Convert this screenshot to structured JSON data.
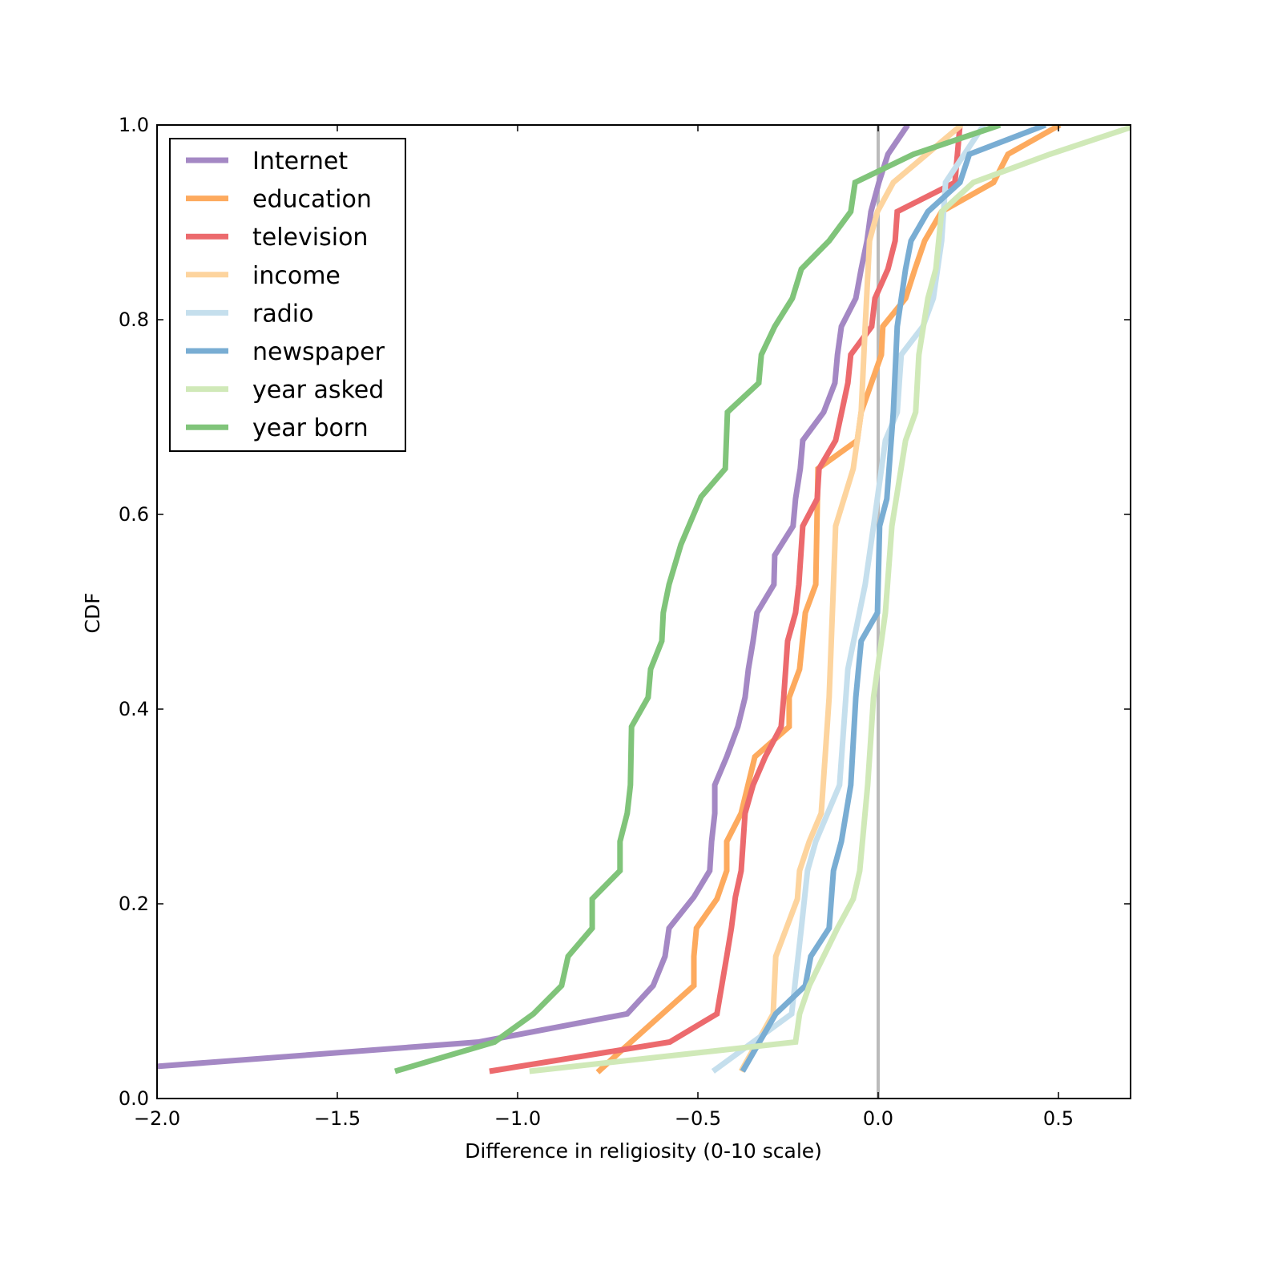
{
  "chart_data": {
    "type": "line",
    "title": "",
    "xlabel": "Difference in religiosity (0-10 scale)",
    "ylabel": "CDF",
    "xlim": [
      -2.0,
      0.7
    ],
    "ylim": [
      0.0,
      1.0
    ],
    "xticks": [
      -2.0,
      -1.5,
      -1.0,
      -0.5,
      0.0,
      0.5
    ],
    "xtick_labels": [
      "−2.0",
      "−1.5",
      "−1.0",
      "−0.5",
      "0.0",
      "0.5"
    ],
    "yticks": [
      0.0,
      0.2,
      0.4,
      0.6,
      0.8,
      1.0
    ],
    "ytick_labels": [
      "0.0",
      "0.2",
      "0.4",
      "0.6",
      "0.8",
      "1.0"
    ],
    "grid": false,
    "legend_position": "top-left",
    "reference_line": {
      "x": 0.0,
      "color": "#bbbbbb"
    },
    "series": [
      {
        "name": "Internet",
        "color": "#a488c4",
        "x": [
          -2.0,
          -1.107,
          -0.696,
          -0.624,
          -0.591,
          -0.58,
          -0.511,
          -0.467,
          -0.462,
          -0.453,
          -0.453,
          -0.42,
          -0.389,
          -0.369,
          -0.36,
          -0.347,
          -0.336,
          -0.289,
          -0.287,
          -0.236,
          -0.229,
          -0.216,
          -0.209,
          -0.151,
          -0.12,
          -0.113,
          -0.102,
          -0.062,
          -0.047,
          -0.031,
          -0.02,
          0.002,
          0.027,
          0.082
        ],
        "y": [
          0.033,
          0.058,
          0.087,
          0.116,
          0.146,
          0.175,
          0.207,
          0.234,
          0.264,
          0.293,
          0.322,
          0.351,
          0.382,
          0.412,
          0.441,
          0.47,
          0.499,
          0.528,
          0.558,
          0.588,
          0.616,
          0.647,
          0.676,
          0.705,
          0.735,
          0.764,
          0.793,
          0.822,
          0.852,
          0.881,
          0.911,
          0.941,
          0.97,
          1.0
        ]
      },
      {
        "name": "education",
        "color": "#fdaa5e",
        "x": [
          -0.778,
          -0.698,
          -0.511,
          -0.511,
          -0.504,
          -0.447,
          -0.42,
          -0.42,
          -0.38,
          -0.342,
          -0.247,
          -0.247,
          -0.218,
          -0.202,
          -0.173,
          -0.167,
          -0.058,
          -0.047,
          0.009,
          0.013,
          0.076,
          0.102,
          0.129,
          0.176,
          0.32,
          0.36,
          0.504
        ],
        "y": [
          0.027,
          0.054,
          0.116,
          0.146,
          0.175,
          0.205,
          0.234,
          0.264,
          0.293,
          0.351,
          0.382,
          0.412,
          0.441,
          0.499,
          0.528,
          0.647,
          0.676,
          0.705,
          0.764,
          0.793,
          0.822,
          0.852,
          0.881,
          0.911,
          0.941,
          0.97,
          1.0
        ]
      },
      {
        "name": "television",
        "color": "#ec6a6d",
        "x": [
          -1.078,
          -0.578,
          -0.447,
          -0.42,
          -0.407,
          -0.396,
          -0.38,
          -0.369,
          -0.347,
          -0.313,
          -0.269,
          -0.262,
          -0.251,
          -0.229,
          -0.22,
          -0.209,
          -0.169,
          -0.164,
          -0.118,
          -0.084,
          -0.076,
          -0.018,
          -0.009,
          0.027,
          0.047,
          0.053,
          0.213,
          0.227
        ],
        "y": [
          0.028,
          0.058,
          0.087,
          0.146,
          0.175,
          0.207,
          0.234,
          0.293,
          0.322,
          0.351,
          0.382,
          0.412,
          0.47,
          0.499,
          0.528,
          0.588,
          0.616,
          0.647,
          0.676,
          0.735,
          0.764,
          0.793,
          0.822,
          0.852,
          0.881,
          0.911,
          0.941,
          1.0
        ]
      },
      {
        "name": "income",
        "color": "#fdd49e",
        "x": [
          -0.38,
          -0.291,
          -0.284,
          -0.224,
          -0.218,
          -0.191,
          -0.158,
          -0.147,
          -0.136,
          -0.124,
          -0.118,
          -0.069,
          -0.047,
          -0.036,
          -0.024,
          -0.002,
          0.042,
          0.231
        ],
        "y": [
          0.028,
          0.087,
          0.146,
          0.205,
          0.234,
          0.264,
          0.293,
          0.351,
          0.412,
          0.528,
          0.588,
          0.647,
          0.705,
          0.793,
          0.881,
          0.911,
          0.941,
          1.0
        ]
      },
      {
        "name": "radio",
        "color": "#c5dfed",
        "x": [
          -0.458,
          -0.24,
          -0.213,
          -0.196,
          -0.173,
          -0.107,
          -0.084,
          -0.036,
          -0.013,
          0.02,
          0.053,
          0.064,
          0.124,
          0.153,
          0.176,
          0.187,
          0.293
        ],
        "y": [
          0.028,
          0.087,
          0.175,
          0.234,
          0.264,
          0.322,
          0.441,
          0.528,
          0.588,
          0.676,
          0.705,
          0.764,
          0.793,
          0.822,
          0.881,
          0.941,
          1.0
        ]
      },
      {
        "name": "newspaper",
        "color": "#79add3",
        "x": [
          -0.376,
          -0.284,
          -0.202,
          -0.187,
          -0.136,
          -0.124,
          -0.102,
          -0.076,
          -0.062,
          -0.047,
          -0.002,
          0.004,
          0.024,
          0.042,
          0.053,
          0.076,
          0.091,
          0.138,
          0.227,
          0.253,
          0.464
        ],
        "y": [
          0.028,
          0.087,
          0.116,
          0.146,
          0.175,
          0.234,
          0.264,
          0.322,
          0.412,
          0.47,
          0.499,
          0.588,
          0.616,
          0.705,
          0.793,
          0.852,
          0.881,
          0.911,
          0.941,
          0.97,
          1.0
        ]
      },
      {
        "name": "year asked",
        "color": "#d0e9b8",
        "x": [
          -0.967,
          -0.229,
          -0.218,
          -0.191,
          -0.113,
          -0.069,
          -0.051,
          -0.029,
          -0.013,
          0.02,
          0.038,
          0.076,
          0.104,
          0.113,
          0.138,
          0.16,
          0.176,
          0.264,
          0.476,
          0.72
        ],
        "y": [
          0.028,
          0.058,
          0.087,
          0.116,
          0.175,
          0.205,
          0.234,
          0.322,
          0.412,
          0.499,
          0.588,
          0.676,
          0.705,
          0.764,
          0.822,
          0.852,
          0.911,
          0.941,
          0.97,
          1.0
        ]
      },
      {
        "name": "year born",
        "color": "#80c47a",
        "x": [
          -1.34,
          -1.064,
          -0.956,
          -0.878,
          -0.86,
          -0.793,
          -0.793,
          -0.716,
          -0.716,
          -0.696,
          -0.687,
          -0.684,
          -0.638,
          -0.631,
          -0.6,
          -0.596,
          -0.58,
          -0.547,
          -0.491,
          -0.424,
          -0.418,
          -0.331,
          -0.324,
          -0.287,
          -0.238,
          -0.213,
          -0.136,
          -0.076,
          -0.064,
          0.098,
          0.338
        ],
        "y": [
          0.028,
          0.058,
          0.087,
          0.116,
          0.146,
          0.175,
          0.205,
          0.234,
          0.264,
          0.293,
          0.322,
          0.382,
          0.412,
          0.441,
          0.47,
          0.499,
          0.528,
          0.569,
          0.618,
          0.647,
          0.705,
          0.735,
          0.764,
          0.793,
          0.822,
          0.852,
          0.881,
          0.911,
          0.941,
          0.97,
          1.0
        ]
      }
    ]
  }
}
